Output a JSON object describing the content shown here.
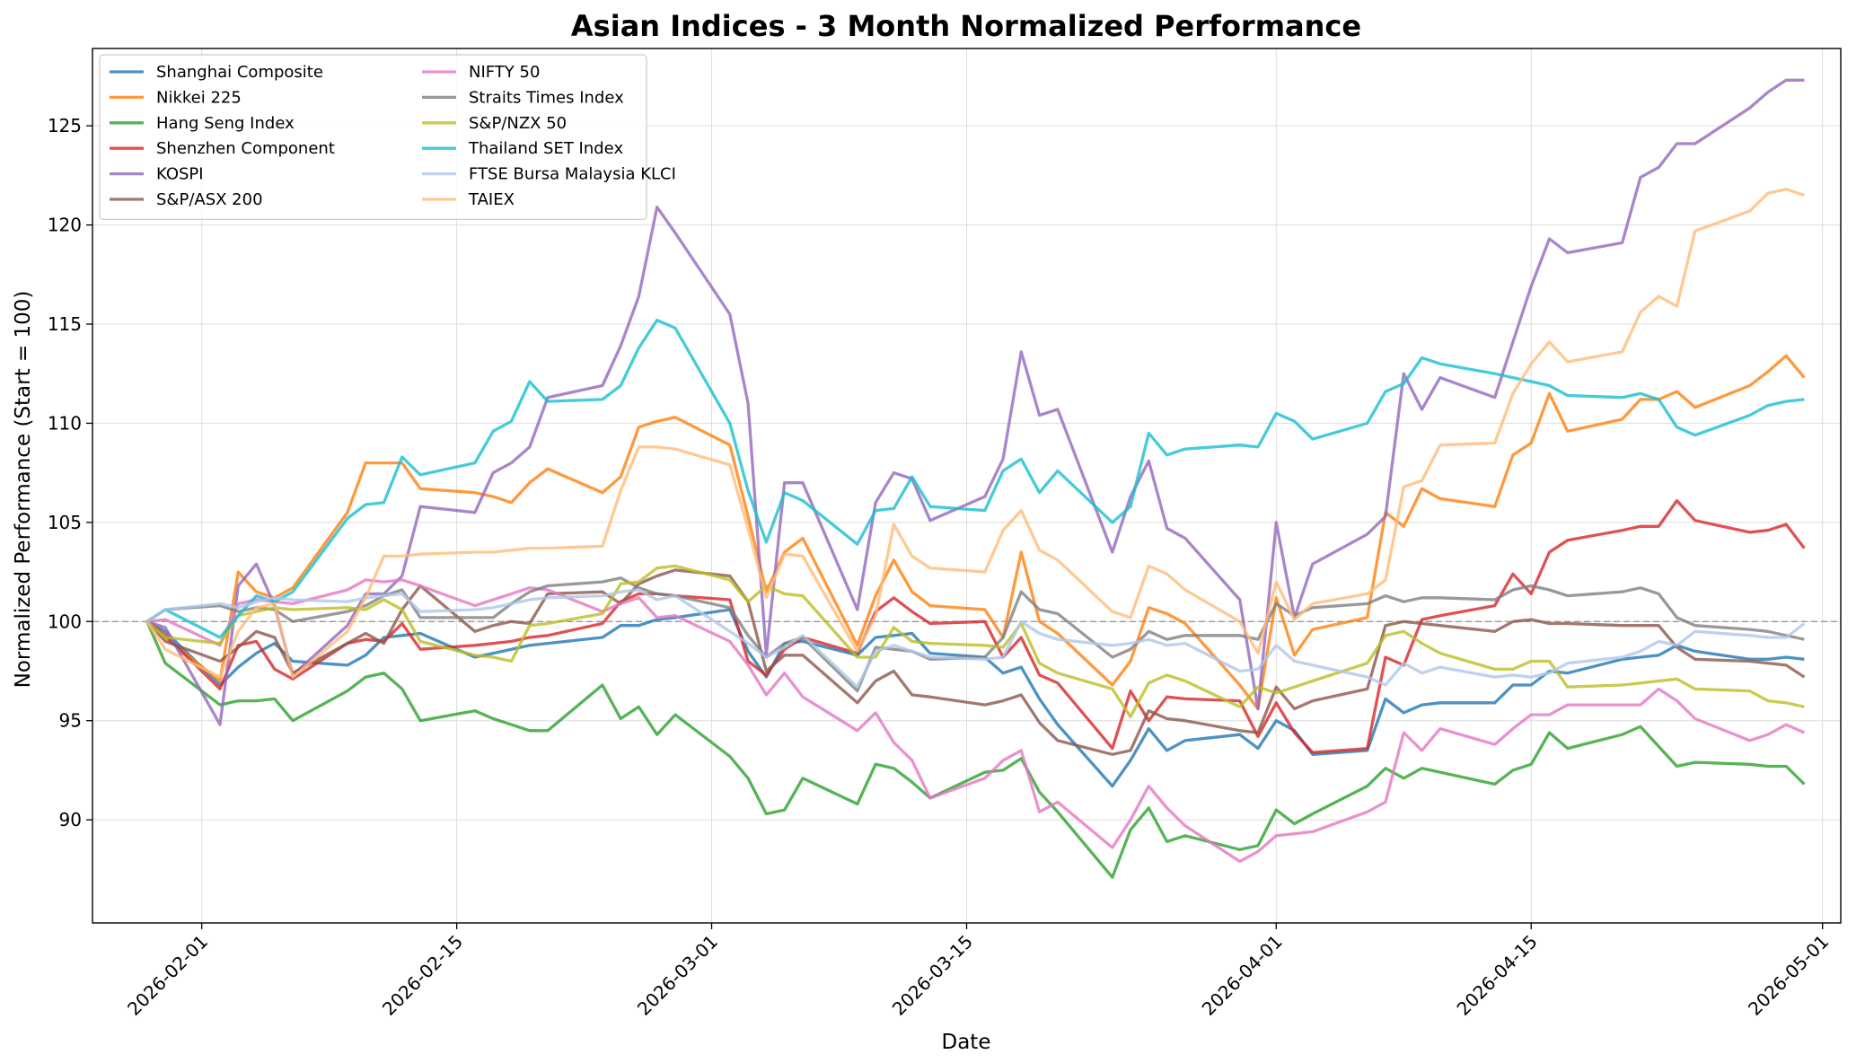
{
  "chart_data": {
    "type": "line",
    "title": "Asian Indices - 3 Month Normalized Performance",
    "xlabel": "Date",
    "ylabel": "Normalized Performance (Start = 100)",
    "xlim": [
      "2026-01-26",
      "2026-05-02"
    ],
    "ylim": [
      84.8,
      128.9
    ],
    "grid": true,
    "legend_position": "upper-left",
    "baseline": 100,
    "x_ticks": [
      "2026-02-01",
      "2026-02-15",
      "2026-03-01",
      "2026-03-15",
      "2026-04-01",
      "2026-04-15",
      "2026-05-01"
    ],
    "y_ticks": [
      90,
      95,
      100,
      105,
      110,
      115,
      120,
      125
    ],
    "x": [
      "2026-01-29",
      "2026-01-30",
      "2026-02-02",
      "2026-02-03",
      "2026-02-04",
      "2026-02-05",
      "2026-02-06",
      "2026-02-09",
      "2026-02-10",
      "2026-02-11",
      "2026-02-12",
      "2026-02-13",
      "2026-02-16",
      "2026-02-17",
      "2026-02-18",
      "2026-02-19",
      "2026-02-20",
      "2026-02-23",
      "2026-02-24",
      "2026-02-25",
      "2026-02-26",
      "2026-02-27",
      "2026-03-02",
      "2026-03-03",
      "2026-03-04",
      "2026-03-05",
      "2026-03-06",
      "2026-03-09",
      "2026-03-10",
      "2026-03-11",
      "2026-03-12",
      "2026-03-13",
      "2026-03-16",
      "2026-03-17",
      "2026-03-18",
      "2026-03-19",
      "2026-03-20",
      "2026-03-23",
      "2026-03-24",
      "2026-03-25",
      "2026-03-26",
      "2026-03-27",
      "2026-03-30",
      "2026-03-31",
      "2026-04-01",
      "2026-04-02",
      "2026-04-03",
      "2026-04-06",
      "2026-04-07",
      "2026-04-08",
      "2026-04-09",
      "2026-04-10",
      "2026-04-13",
      "2026-04-14",
      "2026-04-15",
      "2026-04-16",
      "2026-04-17",
      "2026-04-20",
      "2026-04-21",
      "2026-04-22",
      "2026-04-23",
      "2026-04-24",
      "2026-04-27",
      "2026-04-28",
      "2026-04-29",
      "2026-04-30"
    ],
    "series": [
      {
        "name": "Shanghai Composite",
        "color": "#1f77b4",
        "values": [
          100,
          99.5,
          96.8,
          97.7,
          98.4,
          98.9,
          98.0,
          97.8,
          98.3,
          99.2,
          99.3,
          99.4,
          98.2,
          98.4,
          98.6,
          98.8,
          98.9,
          99.2,
          99.8,
          99.8,
          100.1,
          100.2,
          100.6,
          98.5,
          97.2,
          98.9,
          99.0,
          98.3,
          99.2,
          99.3,
          99.4,
          98.4,
          98.2,
          97.4,
          97.7,
          96.1,
          94.8,
          91.7,
          93.0,
          94.6,
          93.5,
          94.0,
          94.3,
          93.6,
          95.0,
          94.5,
          93.3,
          93.5,
          96.1,
          95.4,
          95.8,
          95.9,
          95.9,
          96.8,
          96.8,
          97.5,
          97.4,
          98.1,
          98.2,
          98.3,
          98.8,
          98.5,
          98.1,
          98.1,
          98.2,
          98.1
        ]
      },
      {
        "name": "Nikkei 225",
        "color": "#ff7f0e",
        "values": [
          100,
          99.2,
          97.0,
          102.5,
          101.5,
          101.2,
          101.7,
          105.5,
          108.0,
          108.0,
          108.0,
          106.7,
          106.5,
          106.3,
          106.0,
          107.0,
          107.7,
          106.5,
          107.3,
          109.8,
          110.1,
          110.3,
          108.9,
          105.3,
          101.5,
          103.5,
          104.2,
          98.8,
          101.3,
          103.1,
          101.5,
          100.8,
          100.6,
          99.2,
          103.5,
          100.0,
          99.4,
          96.8,
          98.0,
          100.7,
          100.4,
          99.9,
          96.8,
          95.6,
          101.2,
          98.3,
          99.6,
          100.2,
          105.5,
          104.8,
          106.7,
          106.2,
          105.8,
          108.4,
          109.0,
          111.5,
          109.6,
          110.2,
          111.2,
          111.2,
          111.6,
          110.8,
          111.9,
          112.6,
          113.4,
          112.3
        ]
      },
      {
        "name": "Hang Seng Index",
        "color": "#2ca02c",
        "values": [
          100,
          97.9,
          95.8,
          96.0,
          96.0,
          96.1,
          95.0,
          96.5,
          97.2,
          97.4,
          96.6,
          95.0,
          95.5,
          95.1,
          94.8,
          94.5,
          94.5,
          96.8,
          95.1,
          95.7,
          94.3,
          95.3,
          93.2,
          92.1,
          90.3,
          90.5,
          92.1,
          90.8,
          92.8,
          92.6,
          91.9,
          91.1,
          92.4,
          92.5,
          93.1,
          91.4,
          90.4,
          87.1,
          89.5,
          90.6,
          88.9,
          89.2,
          88.5,
          88.7,
          90.5,
          89.8,
          90.3,
          91.7,
          92.6,
          92.1,
          92.6,
          92.4,
          91.8,
          92.5,
          92.8,
          94.4,
          93.6,
          94.3,
          94.7,
          93.7,
          92.7,
          92.9,
          92.8,
          92.7,
          92.7,
          91.8
        ]
      },
      {
        "name": "Shenzhen Component",
        "color": "#d62728",
        "values": [
          100,
          99.3,
          96.6,
          98.8,
          99.0,
          97.6,
          97.1,
          98.9,
          99.1,
          99.0,
          99.9,
          98.6,
          98.8,
          98.9,
          99.0,
          99.2,
          99.3,
          99.9,
          101.0,
          101.4,
          101.4,
          101.3,
          101.1,
          98.0,
          97.3,
          98.6,
          99.2,
          98.4,
          100.5,
          101.2,
          100.5,
          99.9,
          100.0,
          98.2,
          99.2,
          97.3,
          96.9,
          93.6,
          96.5,
          95.0,
          96.2,
          96.1,
          96.0,
          94.2,
          95.9,
          94.4,
          93.4,
          93.6,
          98.2,
          97.8,
          100.1,
          100.3,
          100.8,
          102.4,
          101.4,
          103.5,
          104.1,
          104.6,
          104.8,
          104.8,
          106.1,
          105.1,
          104.5,
          104.6,
          104.9,
          103.7
        ]
      },
      {
        "name": "KOSPI",
        "color": "#9467bd",
        "values": [
          100,
          99.7,
          94.8,
          101.8,
          102.9,
          100.8,
          97.3,
          99.8,
          101.4,
          101.4,
          102.3,
          105.8,
          105.5,
          107.5,
          108.0,
          108.8,
          111.3,
          111.9,
          113.9,
          116.4,
          120.9,
          119.6,
          115.5,
          111.0,
          98.3,
          107.0,
          107.0,
          100.6,
          106.0,
          107.5,
          107.2,
          105.1,
          106.3,
          108.2,
          113.6,
          110.4,
          110.7,
          103.5,
          106.3,
          108.1,
          104.7,
          104.2,
          101.1,
          95.6,
          105.0,
          100.2,
          102.9,
          104.4,
          105.3,
          112.5,
          110.7,
          112.3,
          111.3,
          114.1,
          116.9,
          119.3,
          118.6,
          119.1,
          122.4,
          122.9,
          124.1,
          124.1,
          125.9,
          126.7,
          127.3,
          127.3
        ]
      },
      {
        "name": "S&P/ASX 200",
        "color": "#8c564b",
        "values": [
          100,
          99.0,
          98.0,
          98.7,
          99.5,
          99.2,
          97.4,
          98.9,
          99.4,
          98.9,
          100.6,
          101.8,
          99.5,
          99.8,
          100.0,
          99.9,
          101.4,
          101.5,
          100.9,
          101.9,
          102.3,
          102.6,
          102.3,
          101.0,
          97.5,
          98.3,
          98.3,
          95.9,
          97.0,
          97.5,
          96.3,
          96.2,
          95.8,
          96.0,
          96.3,
          94.9,
          94.0,
          93.3,
          93.5,
          95.5,
          95.1,
          95.0,
          94.5,
          94.4,
          96.7,
          95.6,
          96.0,
          96.6,
          99.8,
          100.0,
          99.9,
          99.8,
          99.5,
          100.0,
          100.1,
          99.9,
          99.9,
          99.8,
          99.8,
          99.8,
          98.7,
          98.1,
          98.0,
          97.9,
          97.8,
          97.2
        ]
      },
      {
        "name": "NIFTY 50",
        "color": "#e377c2",
        "values": [
          100,
          100.1,
          98.8,
          100.9,
          101.1,
          101.0,
          100.9,
          101.6,
          102.1,
          102.0,
          102.1,
          101.8,
          100.8,
          101.1,
          101.4,
          101.7,
          101.6,
          100.5,
          100.9,
          101.2,
          100.2,
          100.3,
          99.0,
          97.8,
          96.3,
          97.4,
          96.2,
          94.5,
          95.4,
          93.9,
          93.0,
          91.1,
          92.1,
          93.0,
          93.5,
          90.4,
          90.9,
          88.6,
          90.0,
          91.7,
          90.6,
          89.7,
          87.9,
          88.4,
          89.2,
          89.3,
          89.4,
          90.4,
          90.9,
          94.4,
          93.5,
          94.6,
          93.8,
          94.6,
          95.3,
          95.3,
          95.8,
          95.8,
          95.8,
          96.6,
          96.0,
          95.1,
          94.0,
          94.3,
          94.8,
          94.4
        ]
      },
      {
        "name": "Straits Times Index",
        "color": "#7f7f7f",
        "values": [
          100,
          100.6,
          100.8,
          100.5,
          100.7,
          100.6,
          100.0,
          100.5,
          100.8,
          101.3,
          101.6,
          100.2,
          100.2,
          100.2,
          100.9,
          101.5,
          101.8,
          102.0,
          102.2,
          101.7,
          101.4,
          101.3,
          100.7,
          99.3,
          98.2,
          98.9,
          99.2,
          96.5,
          98.7,
          98.6,
          98.5,
          98.1,
          98.2,
          99.2,
          101.5,
          100.6,
          100.4,
          98.2,
          98.6,
          99.5,
          99.1,
          99.3,
          99.3,
          99.1,
          100.9,
          100.3,
          100.7,
          100.9,
          101.3,
          101.0,
          101.2,
          101.2,
          101.1,
          101.6,
          101.8,
          101.6,
          101.3,
          101.5,
          101.7,
          101.4,
          100.2,
          99.8,
          99.6,
          99.5,
          99.3,
          99.1
        ]
      },
      {
        "name": "S&P/NZX 50",
        "color": "#bcbd22",
        "values": [
          100,
          99.2,
          98.9,
          100.3,
          100.5,
          100.7,
          100.6,
          100.7,
          100.6,
          101.1,
          100.6,
          99.0,
          98.3,
          98.2,
          98.0,
          99.8,
          99.9,
          100.4,
          101.9,
          102.0,
          102.7,
          102.8,
          102.1,
          101.0,
          101.8,
          101.4,
          101.3,
          98.2,
          98.2,
          99.7,
          99.0,
          98.9,
          98.8,
          98.7,
          99.9,
          97.9,
          97.4,
          96.6,
          95.2,
          96.9,
          97.3,
          97.0,
          95.7,
          96.7,
          96.4,
          96.7,
          97.0,
          97.9,
          99.3,
          99.5,
          98.9,
          98.4,
          97.6,
          97.6,
          98.0,
          98.0,
          96.7,
          96.8,
          96.9,
          97.0,
          97.1,
          96.6,
          96.5,
          96.0,
          95.9,
          95.7
        ]
      },
      {
        "name": "Thailand SET Index",
        "color": "#17becf",
        "values": [
          100,
          100.6,
          99.2,
          100.3,
          101.3,
          101.0,
          101.5,
          105.2,
          105.9,
          106.0,
          108.3,
          107.4,
          108.0,
          109.6,
          110.1,
          112.1,
          111.1,
          111.2,
          111.9,
          113.8,
          115.2,
          114.8,
          110.0,
          106.6,
          104.0,
          106.5,
          106.1,
          103.9,
          105.6,
          105.7,
          107.3,
          105.8,
          105.6,
          107.6,
          108.2,
          106.5,
          107.6,
          105.0,
          105.8,
          109.5,
          108.4,
          108.7,
          108.9,
          108.8,
          110.5,
          110.1,
          109.2,
          110.0,
          111.6,
          112.0,
          113.3,
          113.0,
          112.5,
          112.3,
          112.1,
          111.9,
          111.4,
          111.3,
          111.5,
          111.2,
          109.8,
          109.4,
          110.4,
          110.9,
          111.1,
          111.2
        ]
      },
      {
        "name": "FTSE Bursa Malaysia KLCI",
        "color": "#aec7e8",
        "values": [
          100,
          100.6,
          100.9,
          100.7,
          101.0,
          101.2,
          101.1,
          101.0,
          101.2,
          101.3,
          101.4,
          100.5,
          100.6,
          100.7,
          100.9,
          101.1,
          101.2,
          101.3,
          101.5,
          101.6,
          101.1,
          101.3,
          99.5,
          98.9,
          98.2,
          98.7,
          99.3,
          96.7,
          98.5,
          98.8,
          98.5,
          98.2,
          98.1,
          98.2,
          100.0,
          99.4,
          99.1,
          98.8,
          98.9,
          99.1,
          98.8,
          98.9,
          97.5,
          97.6,
          98.8,
          98.0,
          97.8,
          97.2,
          96.8,
          97.9,
          97.4,
          97.7,
          97.2,
          97.3,
          97.2,
          97.4,
          97.9,
          98.2,
          98.5,
          99.0,
          98.8,
          99.5,
          99.3,
          99.2,
          99.2,
          99.9
        ]
      },
      {
        "name": "TAIEX",
        "color": "#ffbb78",
        "values": [
          100,
          98.6,
          97.2,
          99.5,
          100.7,
          100.9,
          97.2,
          99.5,
          101.2,
          103.3,
          103.3,
          103.4,
          103.5,
          103.5,
          103.6,
          103.7,
          103.7,
          103.8,
          106.6,
          108.8,
          108.8,
          108.7,
          107.9,
          104.7,
          101.2,
          103.4,
          103.3,
          98.5,
          100.3,
          104.9,
          103.3,
          102.7,
          102.5,
          104.6,
          105.6,
          103.6,
          103.1,
          100.5,
          100.2,
          102.8,
          102.4,
          101.6,
          100.0,
          98.4,
          102.0,
          100.1,
          100.9,
          101.4,
          102.1,
          106.8,
          107.1,
          108.9,
          109.0,
          111.5,
          113.0,
          114.1,
          113.1,
          113.6,
          115.6,
          116.4,
          115.9,
          119.7,
          120.7,
          121.6,
          121.8,
          121.5
        ]
      }
    ]
  }
}
